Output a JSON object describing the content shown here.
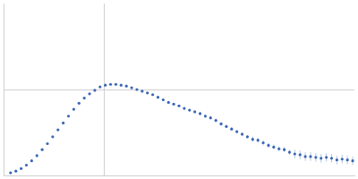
{
  "chart_data": {
    "type": "scatter",
    "x": [
      8,
      14,
      20,
      26,
      32,
      38,
      44,
      50,
      56,
      62,
      68,
      74,
      80,
      86,
      92,
      98,
      104,
      110,
      116,
      122,
      128,
      134,
      140,
      146,
      152,
      158,
      164,
      170,
      176,
      182,
      188,
      194,
      200,
      206,
      212,
      218,
      224,
      230,
      236,
      242,
      248,
      254,
      260,
      266,
      272,
      278,
      284,
      290,
      296,
      302,
      308,
      314,
      320,
      326,
      332,
      338,
      344,
      350,
      356,
      362,
      368,
      374,
      380,
      386,
      392,
      398
    ],
    "values": [
      3,
      5,
      8,
      12,
      17,
      23,
      30,
      37,
      45,
      53,
      61,
      69,
      77,
      84,
      90,
      95,
      99,
      103,
      105,
      106,
      106,
      105,
      104,
      102,
      100,
      98,
      96,
      94,
      91,
      88,
      85,
      83,
      81,
      78,
      76,
      74,
      72,
      69,
      67,
      64,
      60,
      57,
      54,
      51,
      48,
      45,
      42,
      41,
      38,
      35,
      33,
      31,
      30,
      27,
      25,
      24,
      22,
      22,
      21,
      20,
      21,
      20,
      18,
      19,
      18,
      17
    ],
    "errors": [
      0.5,
      0.5,
      0.5,
      0.5,
      0.5,
      0.5,
      0.5,
      0.5,
      0.5,
      0.5,
      0.5,
      0.5,
      0.5,
      0.5,
      0.5,
      0.5,
      0.5,
      0.5,
      0.5,
      0.5,
      0.5,
      0.5,
      0.5,
      0.5,
      1,
      1,
      1,
      1,
      1,
      1,
      1,
      1,
      1,
      1,
      1,
      1,
      2,
      2,
      2,
      2,
      2,
      2,
      2,
      2,
      2,
      2,
      3,
      3,
      3,
      3,
      3,
      3,
      3,
      3,
      5,
      5,
      5,
      5,
      5,
      5,
      5,
      5,
      5,
      5,
      5,
      5
    ],
    "color": "#3a66b4",
    "marker": "circle",
    "xlim": [
      0,
      400
    ],
    "xticks": [
      115
    ],
    "ylim": [
      0,
      200
    ],
    "yticks": [
      100
    ],
    "grid": true,
    "tick_labels": false
  }
}
